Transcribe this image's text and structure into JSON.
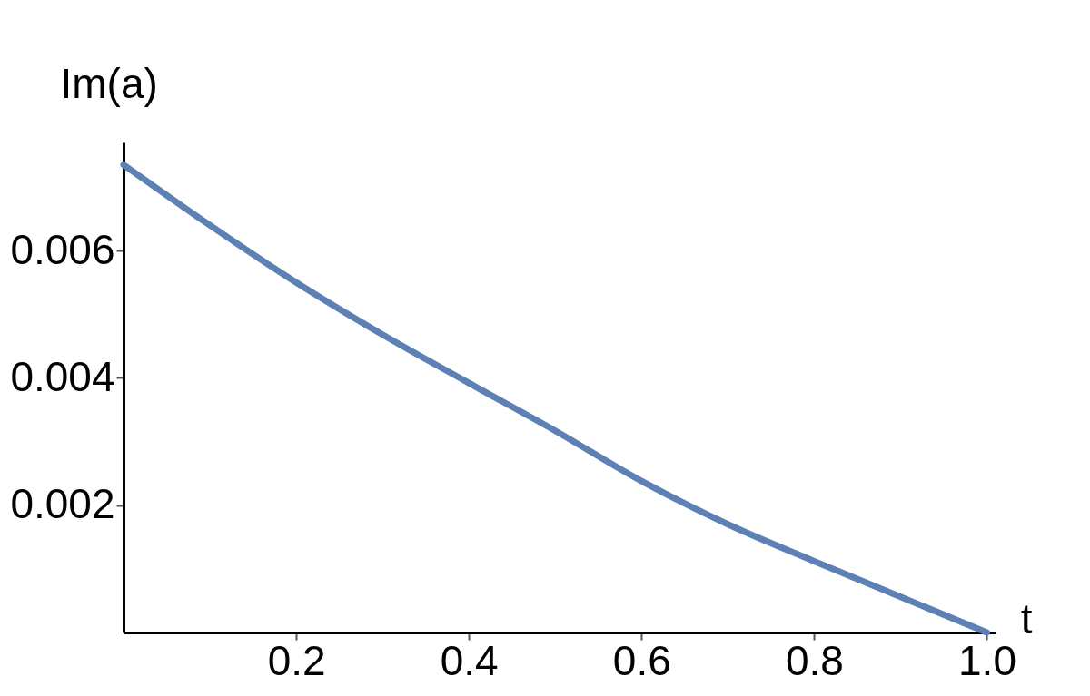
{
  "chart_data": {
    "type": "line",
    "xlabel": "t",
    "ylabel": "Im(a)",
    "x": [
      0,
      0.1,
      0.2,
      0.3,
      0.4,
      0.5,
      0.6,
      0.7,
      0.8,
      0.9,
      1.0
    ],
    "series": [
      {
        "color": "#5e81b5",
        "values": [
          0.00735,
          0.0064,
          0.0055,
          0.00468,
          0.00392,
          0.00317,
          0.00238,
          0.0017,
          0.00112,
          0.00056,
          0
        ]
      }
    ],
    "xlim": [
      0,
      1.01
    ],
    "ylim": [
      0,
      0.0077
    ],
    "xticks": [
      0.2,
      0.4,
      0.6,
      0.8,
      {
        "value": 1,
        "label": "1.0"
      }
    ],
    "yticks": [
      0.002,
      0.004,
      0.006
    ],
    "grid": false,
    "line_style": "solid"
  }
}
